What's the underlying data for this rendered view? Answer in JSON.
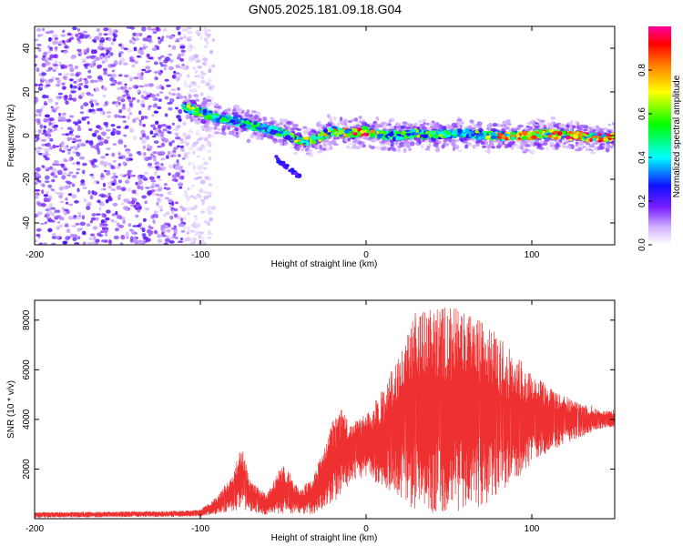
{
  "title": "GN05.2025.181.09.18.G04",
  "chart_data": [
    {
      "type": "heatmap",
      "xlabel": "Height of straight line (km)",
      "ylabel": "Frequency (Hz)",
      "xlim": [
        -200,
        150
      ],
      "ylim": [
        -50,
        50
      ],
      "xticks": [
        -200,
        -100,
        0,
        100
      ],
      "yticks": [
        -40,
        -20,
        0,
        20,
        40
      ],
      "colorbar": {
        "label": "Normalized spectral amplitude",
        "range": [
          0,
          1
        ],
        "ticks": [
          "0.0",
          "0.2",
          "0.4",
          "0.6",
          "0.8"
        ],
        "colors": [
          "#ffffff",
          "#b67bff",
          "#5a00e6",
          "#0000ff",
          "#00ffff",
          "#00ff00",
          "#ffff00",
          "#ff8000",
          "#ff0000",
          "#ff00a0"
        ]
      },
      "noise_region_km": [
        -200,
        -100
      ],
      "ridge": {
        "x": [
          -110,
          -100,
          -90,
          -80,
          -70,
          -60,
          -50,
          -40,
          -35,
          -30,
          -20,
          -10,
          0,
          10,
          20,
          30,
          40,
          50,
          60,
          70,
          80,
          90,
          100,
          110,
          120,
          130,
          140,
          150
        ],
        "y": [
          13,
          11,
          8,
          7,
          5,
          3,
          1,
          -2,
          -3,
          -1,
          2,
          1,
          2,
          0,
          0,
          1,
          0,
          1,
          1,
          0,
          0,
          0,
          0,
          1,
          0,
          0,
          -1,
          -1
        ],
        "amplitude": [
          0.7,
          0.6,
          0.5,
          0.45,
          0.5,
          0.45,
          0.55,
          0.7,
          0.75,
          0.6,
          0.85,
          0.8,
          0.9,
          0.6,
          0.55,
          0.6,
          0.55,
          0.6,
          0.5,
          0.6,
          0.8,
          0.85,
          0.85,
          0.8,
          0.9,
          0.85,
          0.95,
          0.8
        ]
      },
      "secondary_branch": {
        "x": [
          -55,
          -50,
          -45,
          -40
        ],
        "y": [
          -10,
          -13,
          -16,
          -19
        ]
      }
    },
    {
      "type": "line",
      "xlabel": "Height of straight line (km)",
      "ylabel": "SNR (10 * v/v)",
      "xlim": [
        -200,
        150
      ],
      "ylim": [
        0,
        8800
      ],
      "xticks": [
        -200,
        -100,
        0,
        100
      ],
      "yticks": [
        2000,
        4000,
        6000,
        8000
      ],
      "color": "#ee3030",
      "envelope": {
        "x": [
          -200,
          -120,
          -100,
          -90,
          -80,
          -75,
          -70,
          -60,
          -50,
          -40,
          -30,
          -20,
          -15,
          -10,
          0,
          10,
          20,
          30,
          40,
          50,
          60,
          70,
          80,
          90,
          100,
          110,
          120,
          130,
          140,
          150
        ],
        "upper": [
          250,
          300,
          350,
          900,
          1800,
          3000,
          1500,
          1000,
          2300,
          1100,
          2000,
          4000,
          4500,
          3800,
          4200,
          5200,
          6500,
          8300,
          8500,
          8500,
          8600,
          8000,
          7200,
          6500,
          5800,
          5400,
          5000,
          4600,
          4400,
          4300
        ],
        "lower": [
          50,
          80,
          100,
          200,
          300,
          400,
          300,
          150,
          200,
          200,
          200,
          700,
          800,
          1500,
          1700,
          1300,
          800,
          300,
          200,
          300,
          300,
          400,
          1000,
          1500,
          2200,
          2700,
          3000,
          3300,
          3600,
          3700
        ]
      }
    }
  ]
}
